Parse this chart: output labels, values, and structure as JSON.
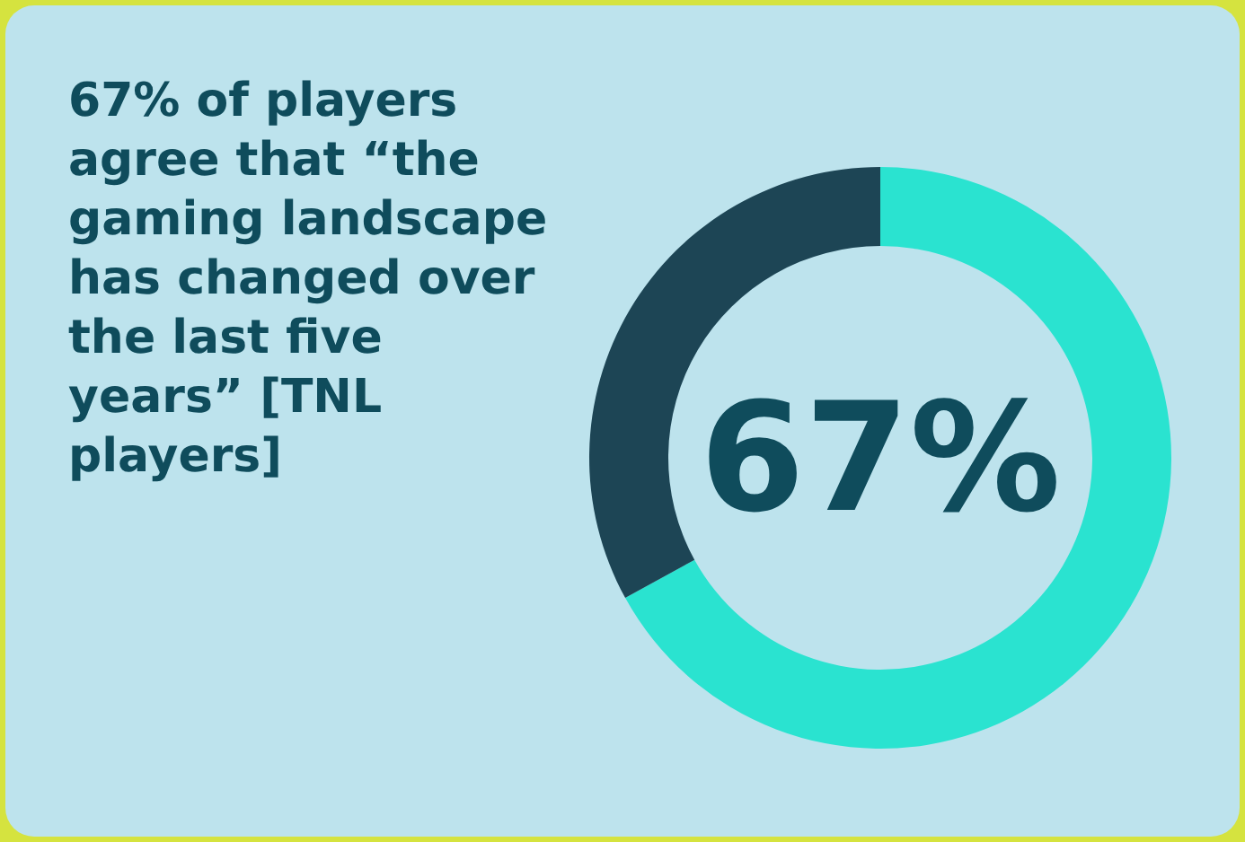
{
  "chart_data": {
    "type": "donut",
    "title": "67% of players agree that “the gaming landscape has changed over the last five years” [TNL players]",
    "categories": [
      null,
      null
    ],
    "values": [
      67,
      33
    ],
    "colors": [
      "#2ae3d0",
      "#1d4555"
    ],
    "annotations": [
      "67%"
    ]
  }
}
